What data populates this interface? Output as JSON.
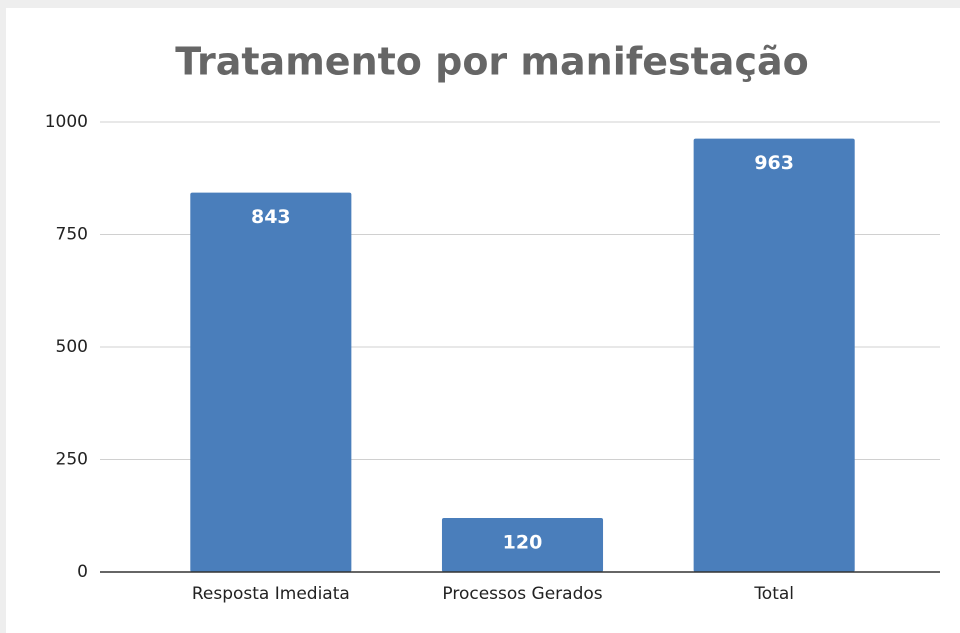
{
  "chart_data": {
    "type": "bar",
    "title": "Tratamento por manifestação",
    "categories": [
      "Resposta Imediata",
      "Processos Gerados",
      "Total"
    ],
    "values": [
      843,
      120,
      963
    ],
    "color": "#4a7ebb",
    "ylim": [
      0,
      1000
    ],
    "yticks": [
      0,
      250,
      500,
      750,
      1000
    ],
    "grid": true
  }
}
